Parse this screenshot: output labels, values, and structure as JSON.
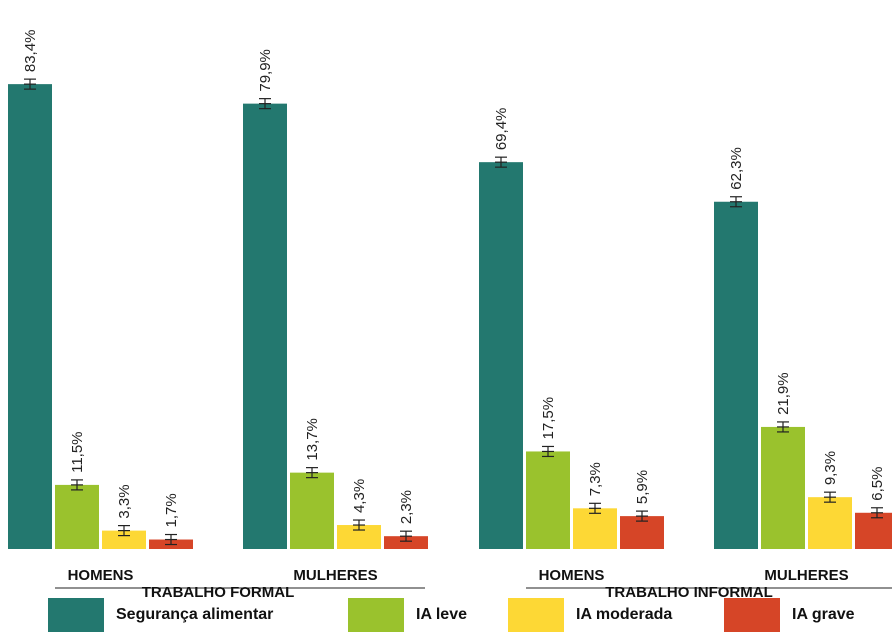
{
  "chart_data": {
    "type": "bar",
    "sections": [
      {
        "label": "TRABALHO FORMAL",
        "groups": [
          {
            "label": "HOMENS",
            "values": [
              83.4,
              11.5,
              3.3,
              1.7
            ],
            "value_labels": [
              "83,4%",
              "11,5%",
              "3,3%",
              "1,7%"
            ]
          },
          {
            "label": "MULHERES",
            "values": [
              79.9,
              13.7,
              4.3,
              2.3
            ],
            "value_labels": [
              "79,9%",
              "13,7%",
              "4,3%",
              "2,3%"
            ]
          }
        ]
      },
      {
        "label": "TRABALHO INFORMAL",
        "groups": [
          {
            "label": "HOMENS",
            "values": [
              69.4,
              17.5,
              7.3,
              5.9
            ],
            "value_labels": [
              "69,4%",
              "17,5%",
              "7,3%",
              "5,9%"
            ]
          },
          {
            "label": "MULHERES",
            "values": [
              62.3,
              21.9,
              9.3,
              6.5
            ],
            "value_labels": [
              "62,3%",
              "21,9%",
              "9,3%",
              "6,5%"
            ]
          }
        ]
      }
    ],
    "series": [
      {
        "name": "Segurança alimentar",
        "color": "#23786f"
      },
      {
        "name": "IA leve",
        "color": "#9ac22d"
      },
      {
        "name": "IA moderada",
        "color": "#fdd835"
      },
      {
        "name": "IA grave",
        "color": "#d64527"
      }
    ],
    "error_bars": true,
    "ylim": [
      0,
      100
    ],
    "legend_position": "bottom",
    "grid": false
  }
}
